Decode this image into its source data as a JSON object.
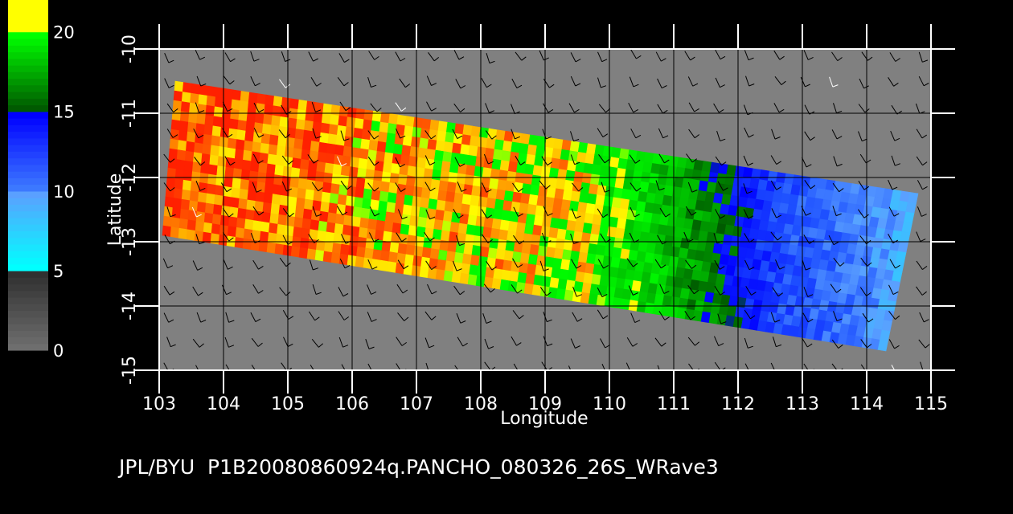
{
  "chart_data": {
    "type": "heatmap",
    "title": "JPL/BYU  P1B20080860924q.PANCHO_080326_26S_WRave3",
    "xlabel": "Longitude",
    "ylabel": "Latitude",
    "xlim": [
      103,
      115
    ],
    "ylim": [
      -15,
      -10
    ],
    "x_ticks": [
      "103",
      "104",
      "105",
      "106",
      "107",
      "108",
      "109",
      "110",
      "111",
      "112",
      "113",
      "114",
      "115"
    ],
    "y_ticks": [
      "-15",
      "-14",
      "-13",
      "-12",
      "-11",
      "-10"
    ],
    "grid": true,
    "background_color": "#808080",
    "colorbar": {
      "placement": "left",
      "range": [
        0,
        22
      ],
      "ticks": [
        "0",
        "5",
        "10",
        "15",
        "20"
      ],
      "bands": [
        {
          "from": 0,
          "to": 5,
          "colors": [
            "#6e6e6e",
            "#303030"
          ]
        },
        {
          "from": 5,
          "to": 10,
          "colors": [
            "#00ffff",
            "#5aa0ff"
          ]
        },
        {
          "from": 10,
          "to": 15,
          "colors": [
            "#3c78ff",
            "#0000ff"
          ]
        },
        {
          "from": 15,
          "to": 20,
          "colors": [
            "#005a00",
            "#00ff00"
          ]
        },
        {
          "from": 20,
          "to": 22,
          "colors": [
            "#ffff00",
            "#ffff00"
          ]
        }
      ]
    },
    "swath_corners": [
      [
        103.25,
        -10.5
      ],
      [
        114.8,
        -12.25
      ],
      [
        114.3,
        -14.7
      ],
      [
        103.05,
        -12.9
      ]
    ],
    "swath_value_by_longitude": [
      {
        "lon": 103.2,
        "value": 21.5
      },
      {
        "lon": 105.0,
        "value": 21.2
      },
      {
        "lon": 106.5,
        "value": 20.6
      },
      {
        "lon": 108.0,
        "value": 20.3
      },
      {
        "lon": 109.5,
        "value": 20.1
      },
      {
        "lon": 110.5,
        "value": 18.5
      },
      {
        "lon": 111.3,
        "value": 16.5
      },
      {
        "lon": 112.0,
        "value": 14.5
      },
      {
        "lon": 112.7,
        "value": 12.0
      },
      {
        "lon": 113.5,
        "value": 11.0
      },
      {
        "lon": 114.8,
        "value": 8.0
      }
    ],
    "wind_barbs": {
      "spacing_deg": 0.45,
      "dominant_direction": "SE",
      "color_outside": "#000000",
      "color_inside": "#000000",
      "stray_color": "#ffffff"
    }
  }
}
